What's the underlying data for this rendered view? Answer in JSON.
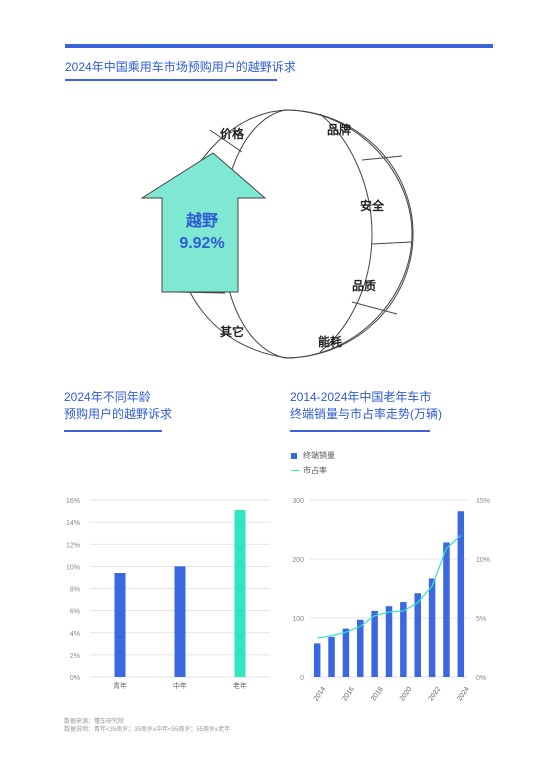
{
  "header": {
    "title": "2024年中国乘用车市场预购用户的越野诉求"
  },
  "ring": {
    "segments": [
      "价格",
      "品牌",
      "安全",
      "品质",
      "能耗",
      "其它"
    ],
    "highlight_label": "越野",
    "highlight_value": "9.92%"
  },
  "left_section": {
    "title_line1": "2024年不同年龄",
    "title_line2": "预购用户的越野诉求"
  },
  "right_section": {
    "title_line1": "2014-2024年中国老年车市",
    "title_line2": "终端销量与市占率走势(万辆)"
  },
  "chart_data": [
    {
      "type": "bar",
      "categories": [
        "青年",
        "中年",
        "老年"
      ],
      "values": [
        9.4,
        10.0,
        15.1
      ],
      "colors": [
        "#3b67e0",
        "#3b67e0",
        "#2fe6c0"
      ],
      "ylim": [
        0,
        16
      ],
      "yticks": [
        "0%",
        "2%",
        "4%",
        "6%",
        "8%",
        "10%",
        "12%",
        "14%",
        "16%"
      ],
      "grid": true
    },
    {
      "type": "bar",
      "x": [
        "2014",
        "2015",
        "2016",
        "2017",
        "2018",
        "2019",
        "2020",
        "2021",
        "2022",
        "2023",
        "2024"
      ],
      "xtick_labels": [
        "2014",
        "2016",
        "2018",
        "2020",
        "2022",
        "2024"
      ],
      "series": [
        {
          "name": "终端销量",
          "type": "bar",
          "color": "#3b67e0",
          "values": [
            57,
            68,
            82,
            97,
            112,
            120,
            127,
            142,
            167,
            228,
            281
          ]
        },
        {
          "name": "市占率",
          "type": "line",
          "axis": "right",
          "color": "#2fe6c0",
          "values": [
            3.3,
            3.5,
            3.8,
            4.3,
            5.2,
            5.5,
            5.6,
            6.3,
            7.7,
            10.9,
            12.0
          ]
        }
      ],
      "ylim": [
        0,
        300
      ],
      "yticks": [
        "0",
        "100",
        "200",
        "300"
      ],
      "y2lim": [
        0,
        15
      ],
      "y2ticks": [
        "0%",
        "5%",
        "10%",
        "15%"
      ],
      "legend": "top-left"
    }
  ],
  "footer": {
    "line1": "数据来源：懂车研究院",
    "line2": "数据说明：青年<35周岁；35周岁≤中年<55周岁；55周岁≤老年"
  }
}
